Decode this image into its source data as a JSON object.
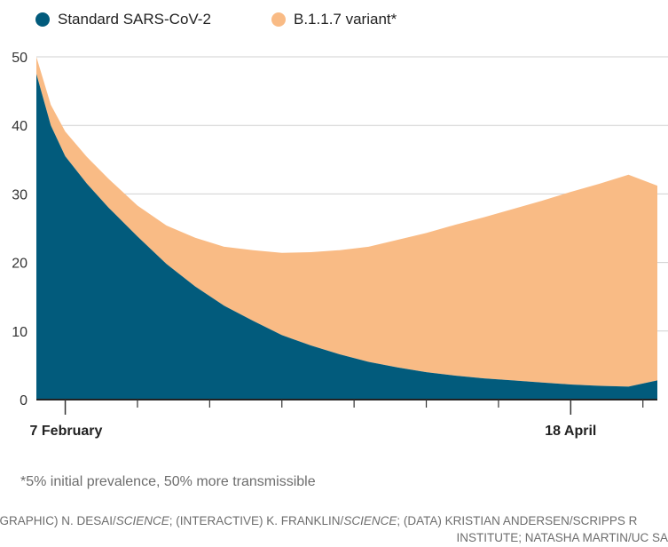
{
  "legend": {
    "items": [
      {
        "label": "Standard SARS-CoV-2",
        "color": "#025b7c"
      },
      {
        "label": "B.1.1.7 variant*",
        "color": "#f9bb85"
      }
    ]
  },
  "chart_data": {
    "type": "area",
    "stacked": true,
    "title": "",
    "xlabel": "",
    "ylabel": "",
    "ylim": [
      0,
      50
    ],
    "yticks": [
      0,
      10,
      20,
      30,
      40,
      50
    ],
    "x_tick_labels": [
      {
        "date": "2021-02-07",
        "label": "7 February"
      },
      {
        "date": "2021-04-18",
        "label": "18 April"
      }
    ],
    "x_minor_tick_dates": [
      "2021-02-17",
      "2021-02-27",
      "2021-03-09",
      "2021-03-19",
      "2021-03-29",
      "2021-04-08",
      "2021-04-28"
    ],
    "x_range": [
      "2021-02-03",
      "2021-04-30"
    ],
    "grid": "horizontal",
    "series": [
      {
        "name": "Standard SARS-CoV-2",
        "color": "#025b7c",
        "points": [
          [
            "2021-02-03",
            47.5
          ],
          [
            "2021-02-05",
            40
          ],
          [
            "2021-02-07",
            35.5
          ],
          [
            "2021-02-10",
            31.5
          ],
          [
            "2021-02-13",
            28
          ],
          [
            "2021-02-17",
            23.8
          ],
          [
            "2021-02-21",
            19.8
          ],
          [
            "2021-02-25",
            16.5
          ],
          [
            "2021-03-01",
            13.7
          ],
          [
            "2021-03-05",
            11.5
          ],
          [
            "2021-03-09",
            9.4
          ],
          [
            "2021-03-13",
            7.9
          ],
          [
            "2021-03-17",
            6.6
          ],
          [
            "2021-03-21",
            5.5
          ],
          [
            "2021-03-25",
            4.7
          ],
          [
            "2021-03-29",
            4.0
          ],
          [
            "2021-04-02",
            3.5
          ],
          [
            "2021-04-06",
            3.1
          ],
          [
            "2021-04-10",
            2.8
          ],
          [
            "2021-04-14",
            2.5
          ],
          [
            "2021-04-18",
            2.2
          ],
          [
            "2021-04-22",
            2.0
          ],
          [
            "2021-04-26",
            1.9
          ],
          [
            "2021-04-30",
            2.8
          ]
        ]
      },
      {
        "name": "B.1.1.7 variant*",
        "color": "#f9bb85",
        "points": [
          [
            "2021-02-03",
            2.5
          ],
          [
            "2021-02-05",
            3.0
          ],
          [
            "2021-02-07",
            3.6
          ],
          [
            "2021-02-10",
            3.9
          ],
          [
            "2021-02-13",
            4.2
          ],
          [
            "2021-02-17",
            4.5
          ],
          [
            "2021-02-21",
            5.6
          ],
          [
            "2021-02-25",
            7.1
          ],
          [
            "2021-03-01",
            8.6
          ],
          [
            "2021-03-05",
            10.3
          ],
          [
            "2021-03-09",
            12.0
          ],
          [
            "2021-03-13",
            13.6
          ],
          [
            "2021-03-17",
            15.2
          ],
          [
            "2021-03-21",
            16.8
          ],
          [
            "2021-03-25",
            18.6
          ],
          [
            "2021-03-29",
            20.3
          ],
          [
            "2021-04-02",
            22.0
          ],
          [
            "2021-04-06",
            23.5
          ],
          [
            "2021-04-10",
            25.0
          ],
          [
            "2021-04-14",
            26.5
          ],
          [
            "2021-04-18",
            28.1
          ],
          [
            "2021-04-22",
            29.5
          ],
          [
            "2021-04-26",
            30.9
          ],
          [
            "2021-04-30",
            28.4
          ]
        ]
      }
    ]
  },
  "footnote": "*5% initial prevalence, 50% more transmissible",
  "credit": {
    "line1": [
      {
        "text": "(GRAPHIC) N. DESAI/",
        "italic": false
      },
      {
        "text": "SCIENCE",
        "italic": true
      },
      {
        "text": "; (INTERACTIVE) K. FRANKLIN/",
        "italic": false
      },
      {
        "text": "SCIENCE",
        "italic": true
      },
      {
        "text": "; (DATA) KRISTIAN ANDERSEN/SCRIPPS R",
        "italic": false
      }
    ],
    "line2": "INSTITUTE; NATASHA MARTIN/UC SA"
  }
}
